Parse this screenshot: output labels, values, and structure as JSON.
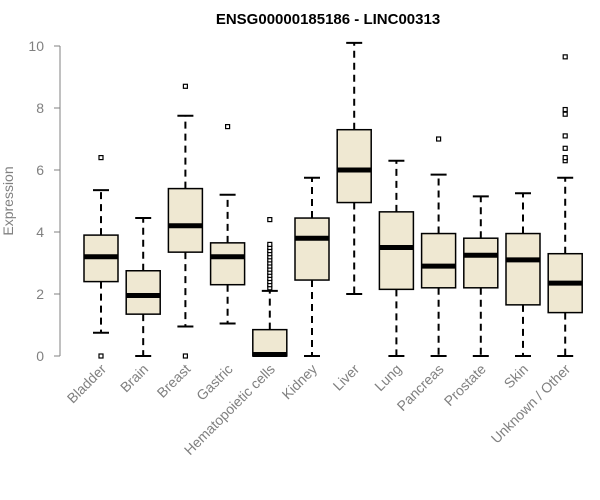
{
  "chart_data": {
    "type": "boxplot",
    "title": "ENSG00000185186 - LINC00313",
    "ylabel": "Expression",
    "xlabel": "",
    "ylim": [
      0,
      10
    ],
    "yticks": [
      0,
      2,
      4,
      6,
      8,
      10
    ],
    "grid": false,
    "colors": {
      "box_fill": "#efe8d2",
      "stroke": "#000000",
      "axis": "#808080"
    },
    "categories": [
      "Bladder",
      "Brain",
      "Breast",
      "Gastric",
      "Hematopoietic cells",
      "Kidney",
      "Liver",
      "Lung",
      "Pancreas",
      "Prostate",
      "Skin",
      "Unknown / Other"
    ],
    "boxes": [
      {
        "name": "Bladder",
        "whisker_low": 0.75,
        "q1": 2.4,
        "median": 3.2,
        "q3": 3.9,
        "whisker_high": 5.35,
        "outliers": [
          6.4,
          0.0
        ]
      },
      {
        "name": "Brain",
        "whisker_low": 0.0,
        "q1": 1.35,
        "median": 1.95,
        "q3": 2.75,
        "whisker_high": 4.45,
        "outliers": []
      },
      {
        "name": "Breast",
        "whisker_low": 0.95,
        "q1": 3.35,
        "median": 4.2,
        "q3": 5.4,
        "whisker_high": 7.75,
        "outliers": [
          8.7,
          0.0
        ]
      },
      {
        "name": "Gastric",
        "whisker_low": 1.05,
        "q1": 2.3,
        "median": 3.2,
        "q3": 3.65,
        "whisker_high": 5.2,
        "outliers": [
          7.4
        ]
      },
      {
        "name": "Hematopoietic cells",
        "whisker_low": 0.0,
        "q1": 0.0,
        "median": 0.05,
        "q3": 0.85,
        "whisker_high": 2.1,
        "outliers": [
          2.2,
          2.3,
          2.4,
          2.5,
          2.6,
          2.7,
          2.8,
          2.9,
          3.0,
          3.1,
          3.2,
          3.3,
          3.4,
          3.5,
          3.6,
          4.4
        ]
      },
      {
        "name": "Kidney",
        "whisker_low": 0.0,
        "q1": 2.45,
        "median": 3.8,
        "q3": 4.45,
        "whisker_high": 5.75,
        "outliers": []
      },
      {
        "name": "Liver",
        "whisker_low": 2.0,
        "q1": 4.95,
        "median": 6.0,
        "q3": 7.3,
        "whisker_high": 10.1,
        "outliers": []
      },
      {
        "name": "Lung",
        "whisker_low": 0.0,
        "q1": 2.15,
        "median": 3.5,
        "q3": 4.65,
        "whisker_high": 6.3,
        "outliers": []
      },
      {
        "name": "Pancreas",
        "whisker_low": 0.0,
        "q1": 2.2,
        "median": 2.9,
        "q3": 3.95,
        "whisker_high": 5.85,
        "outliers": [
          7.0
        ]
      },
      {
        "name": "Prostate",
        "whisker_low": 0.0,
        "q1": 2.2,
        "median": 3.25,
        "q3": 3.8,
        "whisker_high": 5.15,
        "outliers": []
      },
      {
        "name": "Skin",
        "whisker_low": 0.0,
        "q1": 1.65,
        "median": 3.1,
        "q3": 3.95,
        "whisker_high": 5.25,
        "outliers": []
      },
      {
        "name": "Unknown / Other",
        "whisker_low": 0.0,
        "q1": 1.4,
        "median": 2.35,
        "q3": 3.3,
        "whisker_high": 5.75,
        "outliers": [
          6.3,
          6.4,
          6.7,
          7.1,
          7.8,
          7.95,
          9.65
        ]
      }
    ]
  }
}
